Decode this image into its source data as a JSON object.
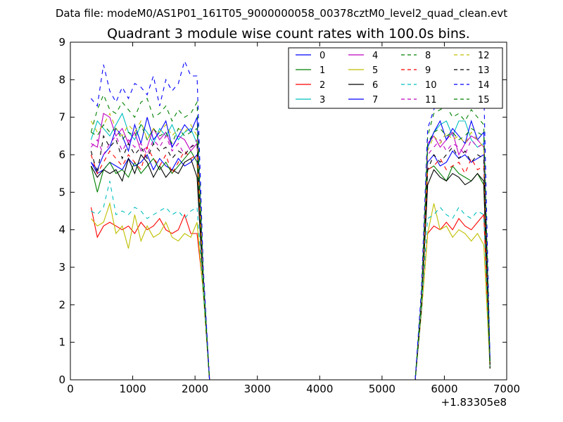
{
  "suptitle": "Data file: modeM0/AS1P01_161T05_9000000058_00378cztM0_level2_quad_clean.evt",
  "chart_data": {
    "type": "line",
    "title": "Quadrant 3 module wise count rates with 100.0s bins.",
    "xlabel": "",
    "ylabel": "",
    "x_offset_label": "+1.83305e8",
    "xlim": [
      0,
      7000
    ],
    "ylim": [
      0,
      9
    ],
    "xticks": [
      "0",
      "1000",
      "2000",
      "3000",
      "4000",
      "5000",
      "6000",
      "7000"
    ],
    "yticks": [
      "0",
      "1",
      "2",
      "3",
      "4",
      "5",
      "6",
      "7",
      "8",
      "9"
    ],
    "grid": false,
    "legend_position": "top-right",
    "x": [
      332,
      432,
      532,
      632,
      732,
      832,
      932,
      1032,
      1132,
      1232,
      1332,
      1432,
      1532,
      1632,
      1732,
      1832,
      1932,
      2032,
      2132,
      2232,
      5532,
      5632,
      5732,
      5832,
      5932,
      6032,
      6132,
      6232,
      6332,
      6432,
      6532,
      6632,
      6732
    ],
    "series": [
      {
        "name": "0",
        "color": "#0000ff",
        "dash": "solid",
        "values": [
          5.8,
          5.5,
          5.6,
          5.8,
          5.7,
          5.6,
          5.9,
          5.7,
          5.8,
          6.0,
          5.6,
          5.9,
          5.7,
          5.6,
          5.9,
          5.7,
          5.8,
          6.0,
          2.5,
          0.0,
          0.0,
          2.0,
          5.8,
          6.0,
          5.7,
          5.8,
          6.1,
          5.9,
          6.0,
          5.8,
          5.9,
          6.0,
          0.4
        ]
      },
      {
        "name": "1",
        "color": "#008000",
        "dash": "solid",
        "values": [
          5.7,
          5.0,
          5.6,
          5.8,
          5.5,
          5.6,
          5.4,
          5.8,
          5.5,
          5.7,
          5.9,
          5.6,
          5.8,
          5.5,
          5.7,
          5.9,
          6.1,
          5.8,
          2.5,
          0.0,
          0.0,
          2.0,
          5.6,
          5.7,
          5.5,
          5.3,
          5.7,
          5.5,
          5.4,
          5.3,
          5.5,
          5.2,
          0.3
        ]
      },
      {
        "name": "2",
        "color": "#ff0000",
        "dash": "solid",
        "values": [
          4.6,
          3.8,
          4.1,
          4.2,
          4.1,
          4.0,
          4.1,
          3.9,
          4.2,
          4.0,
          4.1,
          4.3,
          4.0,
          3.9,
          4.0,
          4.4,
          3.9,
          3.9,
          2.4,
          0.0,
          0.0,
          1.8,
          3.9,
          4.1,
          4.0,
          4.2,
          4.0,
          4.3,
          4.1,
          4.0,
          4.2,
          4.4,
          0.4
        ]
      },
      {
        "name": "3",
        "color": "#00bfbf",
        "dash": "solid",
        "values": [
          6.4,
          6.9,
          6.7,
          6.5,
          6.8,
          7.1,
          6.6,
          6.4,
          6.8,
          6.6,
          6.3,
          6.7,
          6.5,
          6.8,
          6.4,
          6.6,
          6.7,
          6.3,
          2.6,
          0.0,
          0.0,
          2.1,
          6.2,
          6.6,
          6.8,
          6.9,
          6.5,
          6.9,
          6.9,
          6.4,
          6.2,
          6.3,
          0.4
        ]
      },
      {
        "name": "4",
        "color": "#bf00bf",
        "dash": "solid",
        "values": [
          6.3,
          6.2,
          7.1,
          7.0,
          6.5,
          6.7,
          6.3,
          6.6,
          6.1,
          6.2,
          6.7,
          6.4,
          6.6,
          6.2,
          6.5,
          6.4,
          6.1,
          6.3,
          2.6,
          0.0,
          0.0,
          2.1,
          6.3,
          6.5,
          6.2,
          6.4,
          6.6,
          6.0,
          6.3,
          6.5,
          6.4,
          6.2,
          0.4
        ]
      },
      {
        "name": "5",
        "color": "#bfbf00",
        "dash": "solid",
        "values": [
          4.3,
          4.1,
          4.2,
          4.7,
          3.9,
          4.1,
          3.5,
          4.4,
          3.7,
          4.1,
          3.8,
          3.9,
          4.2,
          3.8,
          3.7,
          3.9,
          3.8,
          4.2,
          2.3,
          0.0,
          0.0,
          1.8,
          3.9,
          4.7,
          4.0,
          4.1,
          3.8,
          4.0,
          3.9,
          3.7,
          3.9,
          3.6,
          0.3
        ]
      },
      {
        "name": "6",
        "color": "#000000",
        "dash": "solid",
        "values": [
          5.7,
          5.4,
          5.6,
          5.5,
          5.6,
          5.3,
          5.9,
          5.5,
          6.0,
          5.8,
          5.4,
          5.7,
          5.4,
          5.6,
          5.5,
          5.8,
          5.9,
          5.4,
          2.5,
          0.0,
          0.0,
          1.9,
          5.2,
          5.6,
          5.4,
          5.3,
          5.5,
          5.4,
          5.2,
          5.3,
          5.5,
          5.3,
          0.3
        ]
      },
      {
        "name": "7",
        "color": "#0000ff",
        "dash": "solid",
        "values": [
          5.8,
          5.6,
          6.0,
          6.2,
          6.7,
          6.5,
          6.1,
          6.8,
          6.3,
          7.0,
          6.4,
          6.6,
          6.9,
          6.2,
          6.5,
          6.8,
          6.6,
          7.0,
          2.8,
          0.0,
          0.0,
          2.2,
          6.2,
          6.6,
          6.9,
          6.4,
          6.7,
          6.5,
          6.3,
          6.9,
          6.4,
          6.6,
          0.5
        ]
      },
      {
        "name": "8",
        "color": "#008000",
        "dash": "dashed",
        "values": [
          6.6,
          7.2,
          7.6,
          7.2,
          7.1,
          7.4,
          7.2,
          7.0,
          7.4,
          7.5,
          7.0,
          7.1,
          7.3,
          6.9,
          7.2,
          7.0,
          7.1,
          7.4,
          2.9,
          0.0,
          0.0,
          2.3,
          6.5,
          7.1,
          7.2,
          7.3,
          7.0,
          7.1,
          6.9,
          7.2,
          7.0,
          6.8,
          0.5
        ]
      },
      {
        "name": "9",
        "color": "#ff0000",
        "dash": "dashed",
        "values": [
          6.0,
          5.5,
          5.8,
          6.1,
          5.9,
          5.7,
          6.0,
          5.8,
          5.6,
          6.2,
          5.9,
          5.7,
          6.0,
          5.5,
          5.8,
          6.1,
          5.9,
          6.0,
          2.6,
          0.0,
          0.0,
          2.0,
          5.6,
          5.7,
          5.9,
          5.6,
          5.7,
          5.8,
          5.5,
          5.9,
          5.6,
          5.7,
          0.4
        ]
      },
      {
        "name": "10",
        "color": "#00bfbf",
        "dash": "dashed",
        "values": [
          4.5,
          4.4,
          4.6,
          5.3,
          4.4,
          4.5,
          4.4,
          4.6,
          4.5,
          4.3,
          4.4,
          4.5,
          4.6,
          4.4,
          4.5,
          4.3,
          4.5,
          4.6,
          2.4,
          0.0,
          0.0,
          1.9,
          4.3,
          4.4,
          4.6,
          4.4,
          4.3,
          4.6,
          4.4,
          4.3,
          4.5,
          4.4,
          0.3
        ]
      },
      {
        "name": "11",
        "color": "#bf00bf",
        "dash": "dashed",
        "values": [
          6.2,
          6.4,
          6.0,
          6.3,
          6.5,
          6.1,
          6.4,
          6.2,
          6.3,
          6.0,
          6.4,
          6.2,
          6.5,
          6.1,
          6.3,
          6.0,
          6.2,
          6.4,
          2.7,
          0.0,
          0.0,
          2.1,
          6.0,
          6.2,
          6.4,
          6.1,
          6.3,
          6.2,
          6.0,
          6.4,
          6.2,
          6.3,
          0.4
        ]
      },
      {
        "name": "12",
        "color": "#bfbf00",
        "dash": "dashed",
        "values": [
          6.9,
          6.6,
          6.8,
          7.1,
          6.7,
          6.5,
          6.8,
          6.6,
          6.9,
          6.4,
          6.7,
          6.6,
          6.8,
          6.5,
          6.7,
          6.6,
          6.8,
          6.5,
          2.7,
          0.0,
          0.0,
          2.1,
          6.1,
          6.5,
          6.3,
          6.6,
          6.4,
          6.5,
          6.3,
          6.6,
          6.4,
          6.2,
          0.3
        ]
      },
      {
        "name": "13",
        "color": "#000000",
        "dash": "dashed",
        "values": [
          6.1,
          5.5,
          6.5,
          6.2,
          6.4,
          5.9,
          6.3,
          6.0,
          6.2,
          5.9,
          6.3,
          6.1,
          6.2,
          5.9,
          6.1,
          6.0,
          6.2,
          6.3,
          2.6,
          0.0,
          0.0,
          2.0,
          5.6,
          6.0,
          5.8,
          6.0,
          6.2,
          5.9,
          6.1,
          5.8,
          6.0,
          5.9,
          0.4
        ]
      },
      {
        "name": "14",
        "color": "#0000ff",
        "dash": "dashed",
        "values": [
          7.5,
          7.3,
          8.4,
          7.7,
          7.4,
          7.8,
          7.5,
          7.9,
          7.8,
          7.6,
          8.1,
          7.3,
          8.0,
          7.7,
          7.9,
          8.5,
          8.1,
          8.1,
          3.0,
          0.0,
          0.0,
          2.4,
          6.7,
          7.2,
          7.8,
          7.6,
          7.4,
          7.3,
          7.5,
          7.2,
          7.9,
          7.8,
          0.5
        ]
      },
      {
        "name": "15",
        "color": "#008000",
        "dash": "dashed",
        "values": [
          6.6,
          6.5,
          6.8,
          6.6,
          6.7,
          6.4,
          6.6,
          6.5,
          6.8,
          6.4,
          6.7,
          6.5,
          6.6,
          6.3,
          6.7,
          6.5,
          6.6,
          6.7,
          2.7,
          0.0,
          0.0,
          2.1,
          6.3,
          6.6,
          6.7,
          6.5,
          6.6,
          6.4,
          6.5,
          6.7,
          6.6,
          6.5,
          0.4
        ]
      }
    ]
  }
}
